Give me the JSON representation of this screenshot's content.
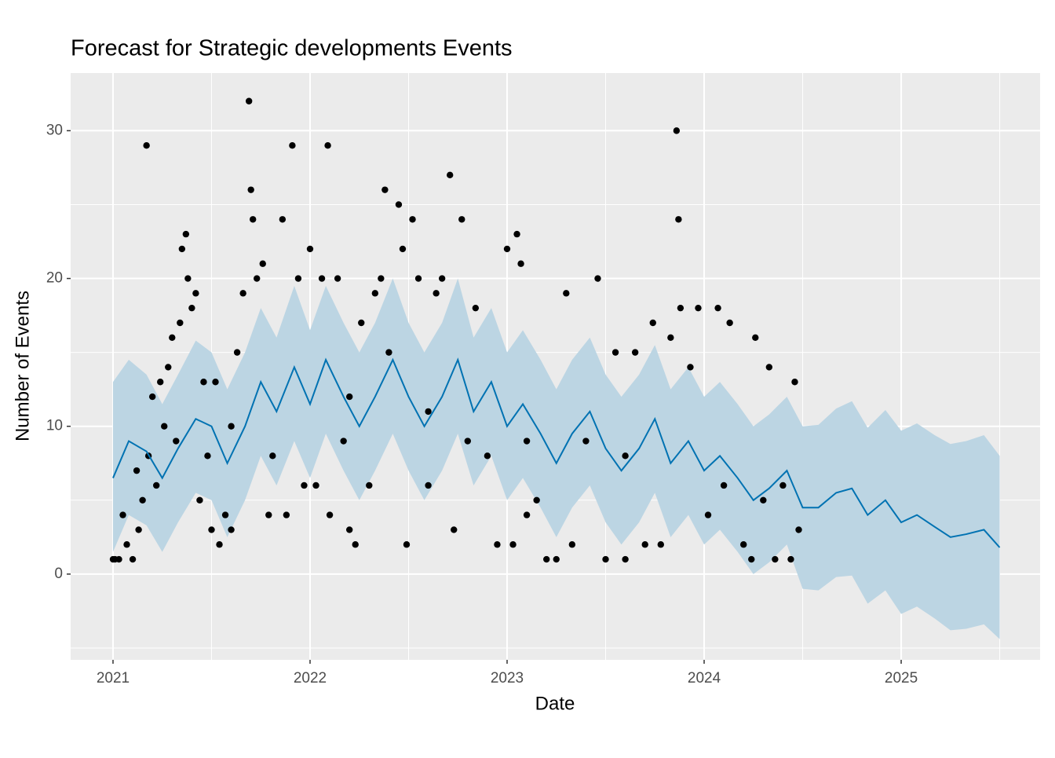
{
  "chart_data": {
    "type": "forecast",
    "title": "Forecast for Strategic developments Events",
    "x_label": "Date",
    "y_label": "Number of Events",
    "xlim": [
      2020.785,
      2025.705
    ],
    "xticks": [
      2021,
      2022,
      2023,
      2024,
      2025
    ],
    "ylim": [
      -5.8,
      33.9
    ],
    "yticks": [
      0,
      10,
      20,
      30
    ],
    "grid": true,
    "forecast": {
      "color": "#0072B2",
      "band_color": "#bcd5e3",
      "x": [
        2021,
        2021.08,
        2021.17,
        2021.25,
        2021.33,
        2021.42,
        2021.5,
        2021.58,
        2021.67,
        2021.75,
        2021.83,
        2021.92,
        2022,
        2022.08,
        2022.17,
        2022.25,
        2022.33,
        2022.42,
        2022.5,
        2022.58,
        2022.67,
        2022.75,
        2022.83,
        2022.92,
        2023,
        2023.08,
        2023.17,
        2023.25,
        2023.33,
        2023.42,
        2023.5,
        2023.58,
        2023.67,
        2023.75,
        2023.83,
        2023.92,
        2024,
        2024.08,
        2024.17,
        2024.25,
        2024.33,
        2024.42,
        2024.5,
        2024.58,
        2024.67,
        2024.75,
        2024.83,
        2024.92,
        2025,
        2025.08,
        2025.17,
        2025.25,
        2025.33,
        2025.42,
        2025.5
      ],
      "values": [
        6.5,
        9,
        8.3,
        6.5,
        8.5,
        10.5,
        10,
        7.5,
        10,
        13,
        11,
        14,
        11.5,
        14.5,
        12,
        10,
        12,
        14.5,
        12,
        10,
        12,
        14.5,
        11,
        13,
        10,
        11.5,
        9.5,
        7.5,
        9.5,
        11,
        8.5,
        7,
        8.5,
        10.5,
        7.5,
        9,
        7,
        8,
        6.5,
        5,
        5.8,
        7,
        4.5,
        4.5,
        5.5,
        5.8,
        4,
        5,
        3.5,
        4,
        3.2,
        2.5,
        2.7,
        3,
        1.8
      ],
      "lower": [
        1.5,
        4,
        3.3,
        1.5,
        3.5,
        5.5,
        5,
        2.5,
        5,
        8,
        6,
        9,
        6.5,
        9.5,
        7,
        5,
        7,
        9.5,
        7,
        5,
        7,
        9.5,
        6,
        8,
        5,
        6.5,
        4.5,
        2.5,
        4.5,
        6,
        3.5,
        2,
        3.5,
        5.5,
        2.5,
        4,
        2,
        3,
        1.5,
        0,
        0.8,
        2,
        -1,
        -1.1,
        -0.2,
        -0.1,
        -2,
        -1.1,
        -2.7,
        -2.2,
        -3,
        -3.8,
        -3.7,
        -3.4,
        -4.4
      ],
      "upper": [
        13,
        14.5,
        13.5,
        11.5,
        13.5,
        15.8,
        15,
        12.5,
        15,
        18,
        16,
        19.5,
        16.5,
        19.5,
        17,
        15,
        17,
        20,
        17,
        15,
        17,
        20,
        16,
        18,
        15,
        16.5,
        14.5,
        12.5,
        14.5,
        16,
        13.5,
        12,
        13.5,
        15.5,
        12.5,
        14,
        12,
        13,
        11.5,
        10,
        10.8,
        12,
        10,
        10.1,
        11.2,
        11.7,
        9.9,
        11.1,
        9.7,
        10.2,
        9.4,
        8.8,
        9,
        9.4,
        8.0
      ]
    },
    "points": {
      "color": "#000000",
      "x": [
        2021,
        2021.01,
        2021.03,
        2021.05,
        2021.07,
        2021.1,
        2021.12,
        2021.13,
        2021.15,
        2021.17,
        2021.18,
        2021.2,
        2021.22,
        2021.24,
        2021.26,
        2021.28,
        2021.3,
        2021.32,
        2021.34,
        2021.35,
        2021.37,
        2021.38,
        2021.4,
        2021.42,
        2021.44,
        2021.46,
        2021.48,
        2021.5,
        2021.52,
        2021.54,
        2021.57,
        2021.6,
        2021.6,
        2021.63,
        2021.66,
        2021.69,
        2021.7,
        2021.71,
        2021.73,
        2021.76,
        2021.79,
        2021.81,
        2021.86,
        2021.88,
        2021.91,
        2021.94,
        2021.97,
        2022,
        2022.03,
        2022.06,
        2022.09,
        2022.1,
        2022.14,
        2022.17,
        2022.2,
        2022.2,
        2022.23,
        2022.26,
        2022.3,
        2022.33,
        2022.36,
        2022.38,
        2022.4,
        2022.45,
        2022.47,
        2022.49,
        2022.52,
        2022.55,
        2022.6,
        2022.6,
        2022.64,
        2022.67,
        2022.71,
        2022.73,
        2022.77,
        2022.8,
        2022.84,
        2022.9,
        2022.95,
        2023,
        2023.03,
        2023.05,
        2023.07,
        2023.1,
        2023.1,
        2023.15,
        2023.2,
        2023.25,
        2023.3,
        2023.33,
        2023.4,
        2023.46,
        2023.5,
        2023.55,
        2023.6,
        2023.6,
        2023.65,
        2023.7,
        2023.74,
        2023.78,
        2023.83,
        2023.86,
        2023.87,
        2023.88,
        2023.93,
        2023.97,
        2024.02,
        2024.07,
        2024.1,
        2024.13,
        2024.2,
        2024.24,
        2024.26,
        2024.3,
        2024.33,
        2024.36,
        2024.4,
        2024.44,
        2024.46,
        2024.48
      ],
      "values": [
        1,
        1,
        1,
        4,
        2,
        1,
        7,
        3,
        5,
        29,
        8,
        12,
        6,
        13,
        10,
        14,
        16,
        9,
        17,
        22,
        23,
        20,
        18,
        19,
        5,
        13,
        8,
        3,
        13,
        2,
        4,
        3,
        10,
        15,
        19,
        32,
        26,
        24,
        20,
        21,
        4,
        8,
        24,
        4,
        29,
        20,
        6,
        22,
        6,
        20,
        29,
        4,
        20,
        9,
        3,
        12,
        2,
        17,
        6,
        19,
        20,
        26,
        15,
        25,
        22,
        2,
        24,
        20,
        6,
        11,
        19,
        20,
        27,
        3,
        24,
        9,
        18,
        8,
        2,
        22,
        2,
        23,
        21,
        4,
        9,
        5,
        1,
        1,
        19,
        2,
        9,
        20,
        1,
        15,
        1,
        8,
        15,
        2,
        17,
        2,
        16,
        30,
        24,
        18,
        14,
        18,
        4,
        18,
        6,
        17,
        2,
        1,
        16,
        5,
        14,
        1,
        6,
        1,
        13,
        3
      ]
    }
  }
}
